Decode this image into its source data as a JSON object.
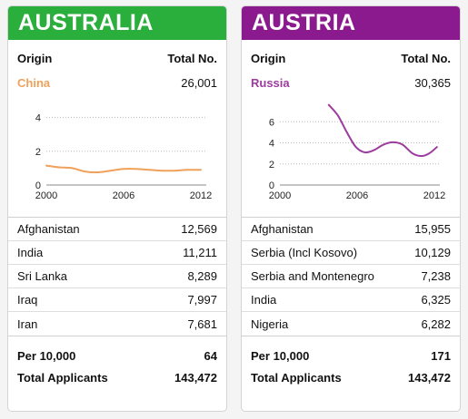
{
  "column_headers": {
    "origin": "Origin",
    "total": "Total No."
  },
  "footer_labels": {
    "per10k": "Per 10,000",
    "total_applicants": "Total Applicants"
  },
  "cards": [
    {
      "country": "AUSTRALIA",
      "header_color": "#2aae3c",
      "accent": "#f0a05a",
      "top_origin": "China",
      "top_total": "26,001",
      "rows": [
        {
          "origin": "Afghanistan",
          "total": "12,569"
        },
        {
          "origin": "India",
          "total": "11,211"
        },
        {
          "origin": "Sri Lanka",
          "total": "8,289"
        },
        {
          "origin": "Iraq",
          "total": "7,997"
        },
        {
          "origin": "Iran",
          "total": "7,681"
        }
      ],
      "per10k": "64",
      "total_applicants": "143,472"
    },
    {
      "country": "AUSTRIA",
      "header_color": "#8b1a8e",
      "accent": "#9b3c9e",
      "top_origin": "Russia",
      "top_total": "30,365",
      "rows": [
        {
          "origin": "Afghanistan",
          "total": "15,955"
        },
        {
          "origin": "Serbia (Incl Kosovo)",
          "total": "10,129"
        },
        {
          "origin": "Serbia and Montenegro",
          "total": "7,238"
        },
        {
          "origin": "India",
          "total": "6,325"
        },
        {
          "origin": "Nigeria",
          "total": "6,282"
        }
      ],
      "per10k": "171",
      "total_applicants": "143,472"
    }
  ],
  "chart_data": [
    {
      "type": "line",
      "series_label": "China",
      "color": "#f0a05a",
      "x": [
        2000,
        2001,
        2002,
        2003,
        2004,
        2005,
        2006,
        2007,
        2008,
        2009,
        2010,
        2011,
        2012
      ],
      "values": [
        1.15,
        1.05,
        1.0,
        0.8,
        0.75,
        0.85,
        0.95,
        0.95,
        0.9,
        0.85,
        0.85,
        0.9,
        0.9
      ],
      "xlim": [
        2000,
        2012
      ],
      "ylim": [
        0,
        5
      ],
      "xticks": [
        2000,
        2006,
        2012
      ],
      "yticks": [
        0,
        2,
        4
      ],
      "grid": true
    },
    {
      "type": "line",
      "series_label": "Russia",
      "color": "#9b3c9e",
      "x": [
        2003.8,
        2004.5,
        2005.2,
        2005.9,
        2006.6,
        2007.3,
        2008.0,
        2008.7,
        2009.5,
        2010.3,
        2011.0,
        2011.6,
        2012.2
      ],
      "values": [
        7.6,
        6.6,
        5.0,
        3.6,
        3.1,
        3.3,
        3.8,
        4.05,
        3.85,
        3.0,
        2.75,
        3.0,
        3.6
      ],
      "xlim": [
        2000,
        2012
      ],
      "ylim": [
        0,
        8
      ],
      "xticks": [
        2000,
        2006,
        2012
      ],
      "yticks": [
        0,
        2,
        4,
        6
      ],
      "grid": true
    }
  ]
}
